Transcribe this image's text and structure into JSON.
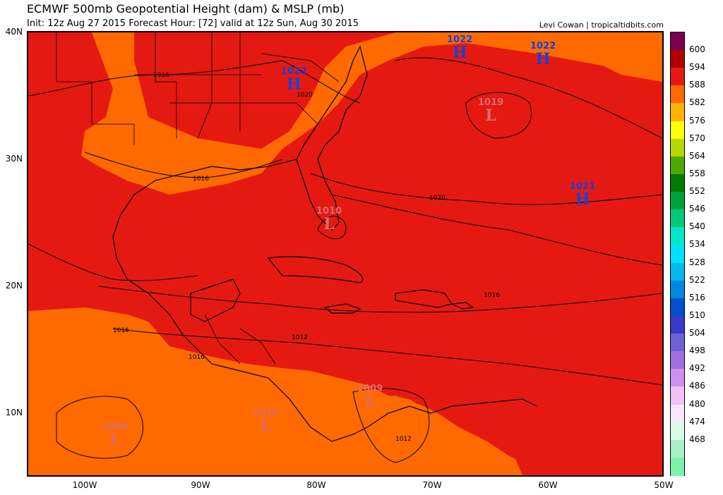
{
  "header": {
    "title": "ECMWF 500mb Geopotential Height (dam) & MSLP (mb)",
    "subtitle": "Init: 12z Aug 27 2015   Forecast Hour: [72]   valid at 12z Sun, Aug 30 2015",
    "credit": "Levi Cowan | tropicaltidbits.com"
  },
  "axes": {
    "lat_labels": [
      "40N",
      "30N",
      "20N",
      "10N"
    ],
    "lon_labels": [
      "100W",
      "90W",
      "80W",
      "70W",
      "60W",
      "50W"
    ]
  },
  "colorbar": {
    "labels": [
      "600",
      "594",
      "588",
      "582",
      "576",
      "570",
      "564",
      "558",
      "552",
      "546",
      "540",
      "534",
      "528",
      "522",
      "516",
      "510",
      "504",
      "498",
      "492",
      "486",
      "480",
      "474",
      "468"
    ],
    "colors": [
      "#7a0050",
      "#b00000",
      "#e41a12",
      "#ff6a00",
      "#ffb300",
      "#ffff00",
      "#b5d800",
      "#4fa800",
      "#007a00",
      "#00a03c",
      "#00c878",
      "#00e8c8",
      "#00e0ff",
      "#00b8f0",
      "#0088e0",
      "#0050d0",
      "#3a3ac8",
      "#7060d8",
      "#a070e0",
      "#d090f0",
      "#f2c0f5",
      "#f7e6fa",
      "#d8fbe6",
      "#a8f0c8",
      "#7df2b0"
    ]
  },
  "systems": [
    {
      "type": "H",
      "value": "1022",
      "kind": "high"
    },
    {
      "type": "H",
      "value": "1022",
      "kind": "high"
    },
    {
      "type": "H",
      "value": "1022",
      "kind": "high"
    },
    {
      "type": "H",
      "value": "1021",
      "kind": "high"
    },
    {
      "type": "L",
      "value": "1019",
      "kind": "low"
    },
    {
      "type": "L",
      "value": "1010",
      "kind": "low"
    },
    {
      "type": "L",
      "value": "1009",
      "kind": "low"
    },
    {
      "type": "L",
      "value": "1010",
      "kind": "low"
    },
    {
      "type": "L",
      "value": "1008",
      "kind": "low"
    }
  ],
  "isobar_labels": [
    "1016",
    "1020",
    "1016",
    "1020",
    "1016",
    "1016",
    "1016",
    "1012",
    "1012"
  ]
}
